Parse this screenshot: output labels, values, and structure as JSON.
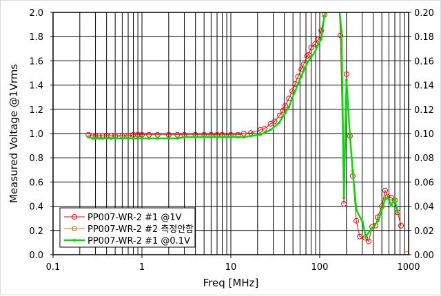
{
  "chart_data": {
    "type": "line",
    "title": "",
    "xlabel": "Freq [MHz]",
    "ylabel": "Measured Voltage @1Vrms",
    "x_scale": "log",
    "xlim": [
      0.1,
      1000
    ],
    "ylim": [
      0,
      2.0
    ],
    "y2lim": [
      0,
      0.2
    ],
    "grid": true,
    "legend_position": "bottom-left",
    "x_ticks": [
      "0.1",
      "1",
      "10",
      "100",
      "1000"
    ],
    "x_tick_values": [
      0.1,
      1,
      10,
      100,
      1000
    ],
    "y_ticks": [
      "0.0",
      "0.2",
      "0.4",
      "0.6",
      "0.8",
      "1.0",
      "1.2",
      "1.4",
      "1.6",
      "1.8",
      "2.0"
    ],
    "y_tick_values": [
      0,
      0.2,
      0.4,
      0.6,
      0.8,
      1.0,
      1.2,
      1.4,
      1.6,
      1.8,
      2.0
    ],
    "y2_ticks": [
      "0.00",
      "0.02",
      "0.04",
      "0.06",
      "0.08",
      "0.10",
      "0.12",
      "0.14",
      "0.16",
      "0.18",
      "0.20"
    ],
    "series": [
      {
        "name": "PP007-WR-2 #1 @1V",
        "color": "#ff0000",
        "marker": "circle",
        "x": [
          0.25,
          0.28,
          0.3,
          0.33,
          0.36,
          0.4,
          0.45,
          0.5,
          0.6,
          0.7,
          0.8,
          0.9,
          1,
          1.2,
          1.5,
          2,
          2.5,
          3,
          4,
          5,
          6,
          7,
          8,
          10,
          12,
          14,
          16.8,
          21.5,
          24,
          28,
          31,
          35.5,
          38.5,
          41,
          45,
          49,
          53,
          57,
          62,
          66,
          72,
          75,
          80,
          89,
          97,
          104,
          113,
          120,
          165,
          171,
          187,
          200,
          219,
          235,
          258,
          282,
          325,
          355,
          388,
          425,
          448,
          499,
          545,
          580,
          640,
          700,
          752,
          822
        ],
        "y": [
          0.99,
          0.98,
          0.98,
          0.98,
          0.98,
          0.98,
          0.98,
          0.98,
          0.98,
          0.98,
          0.99,
          0.99,
          0.99,
          0.99,
          0.99,
          0.99,
          0.99,
          0.99,
          0.99,
          0.99,
          0.99,
          0.99,
          0.99,
          0.99,
          0.99,
          1.0,
          1.005,
          1.03,
          1.04,
          1.08,
          1.1,
          1.15,
          1.19,
          1.23,
          1.29,
          1.35,
          1.41,
          1.47,
          1.53,
          1.57,
          1.64,
          1.65,
          1.71,
          1.74,
          1.78,
          1.85,
          1.98,
          2.05,
          2.05,
          1.81,
          0.42,
          1.49,
          0.98,
          0.65,
          0.28,
          0.15,
          0.14,
          0.11,
          0.23,
          0.24,
          0.31,
          0.4,
          0.53,
          0.48,
          0.47,
          0.45,
          0.35,
          0.24
        ]
      },
      {
        "name": "PP007-WR-2 #2 측정안함",
        "color": "#ff6600",
        "marker": "square",
        "x": [
          950
        ],
        "y": [
          0.01
        ]
      },
      {
        "name": "PP007-WR-2 #1 @0.1V",
        "color": "#00e000",
        "marker": "square",
        "x": [
          0.25,
          0.28,
          0.3,
          0.33,
          0.36,
          0.4,
          0.45,
          0.5,
          0.6,
          0.7,
          0.8,
          0.9,
          1,
          1.2,
          1.5,
          2,
          2.5,
          3,
          4,
          5,
          6,
          7,
          8,
          10,
          12,
          14,
          16.8,
          21.5,
          28,
          35,
          41,
          45,
          49,
          53,
          57,
          62,
          66,
          72,
          80,
          88,
          94,
          104,
          113,
          120,
          165,
          176,
          187,
          200,
          219,
          235,
          258,
          303,
          330,
          388,
          456,
          545,
          580,
          640,
          700,
          752
        ],
        "y": [
          0.97,
          0.96,
          0.96,
          0.96,
          0.96,
          0.96,
          0.96,
          0.96,
          0.96,
          0.96,
          0.96,
          0.96,
          0.96,
          0.96,
          0.96,
          0.96,
          0.96,
          0.97,
          0.97,
          0.97,
          0.97,
          0.97,
          0.97,
          0.97,
          0.97,
          0.97,
          0.98,
          0.99,
          1.03,
          1.09,
          1.17,
          1.22,
          1.29,
          1.35,
          1.41,
          1.47,
          1.52,
          1.58,
          1.63,
          1.67,
          1.72,
          1.78,
          1.97,
          2.05,
          2.05,
          1.84,
          0.47,
          1.44,
          0.98,
          0.69,
          0.37,
          0.27,
          0.15,
          0.22,
          0.28,
          0.46,
          0.47,
          0.41,
          0.46,
          0.35
        ]
      }
    ]
  }
}
